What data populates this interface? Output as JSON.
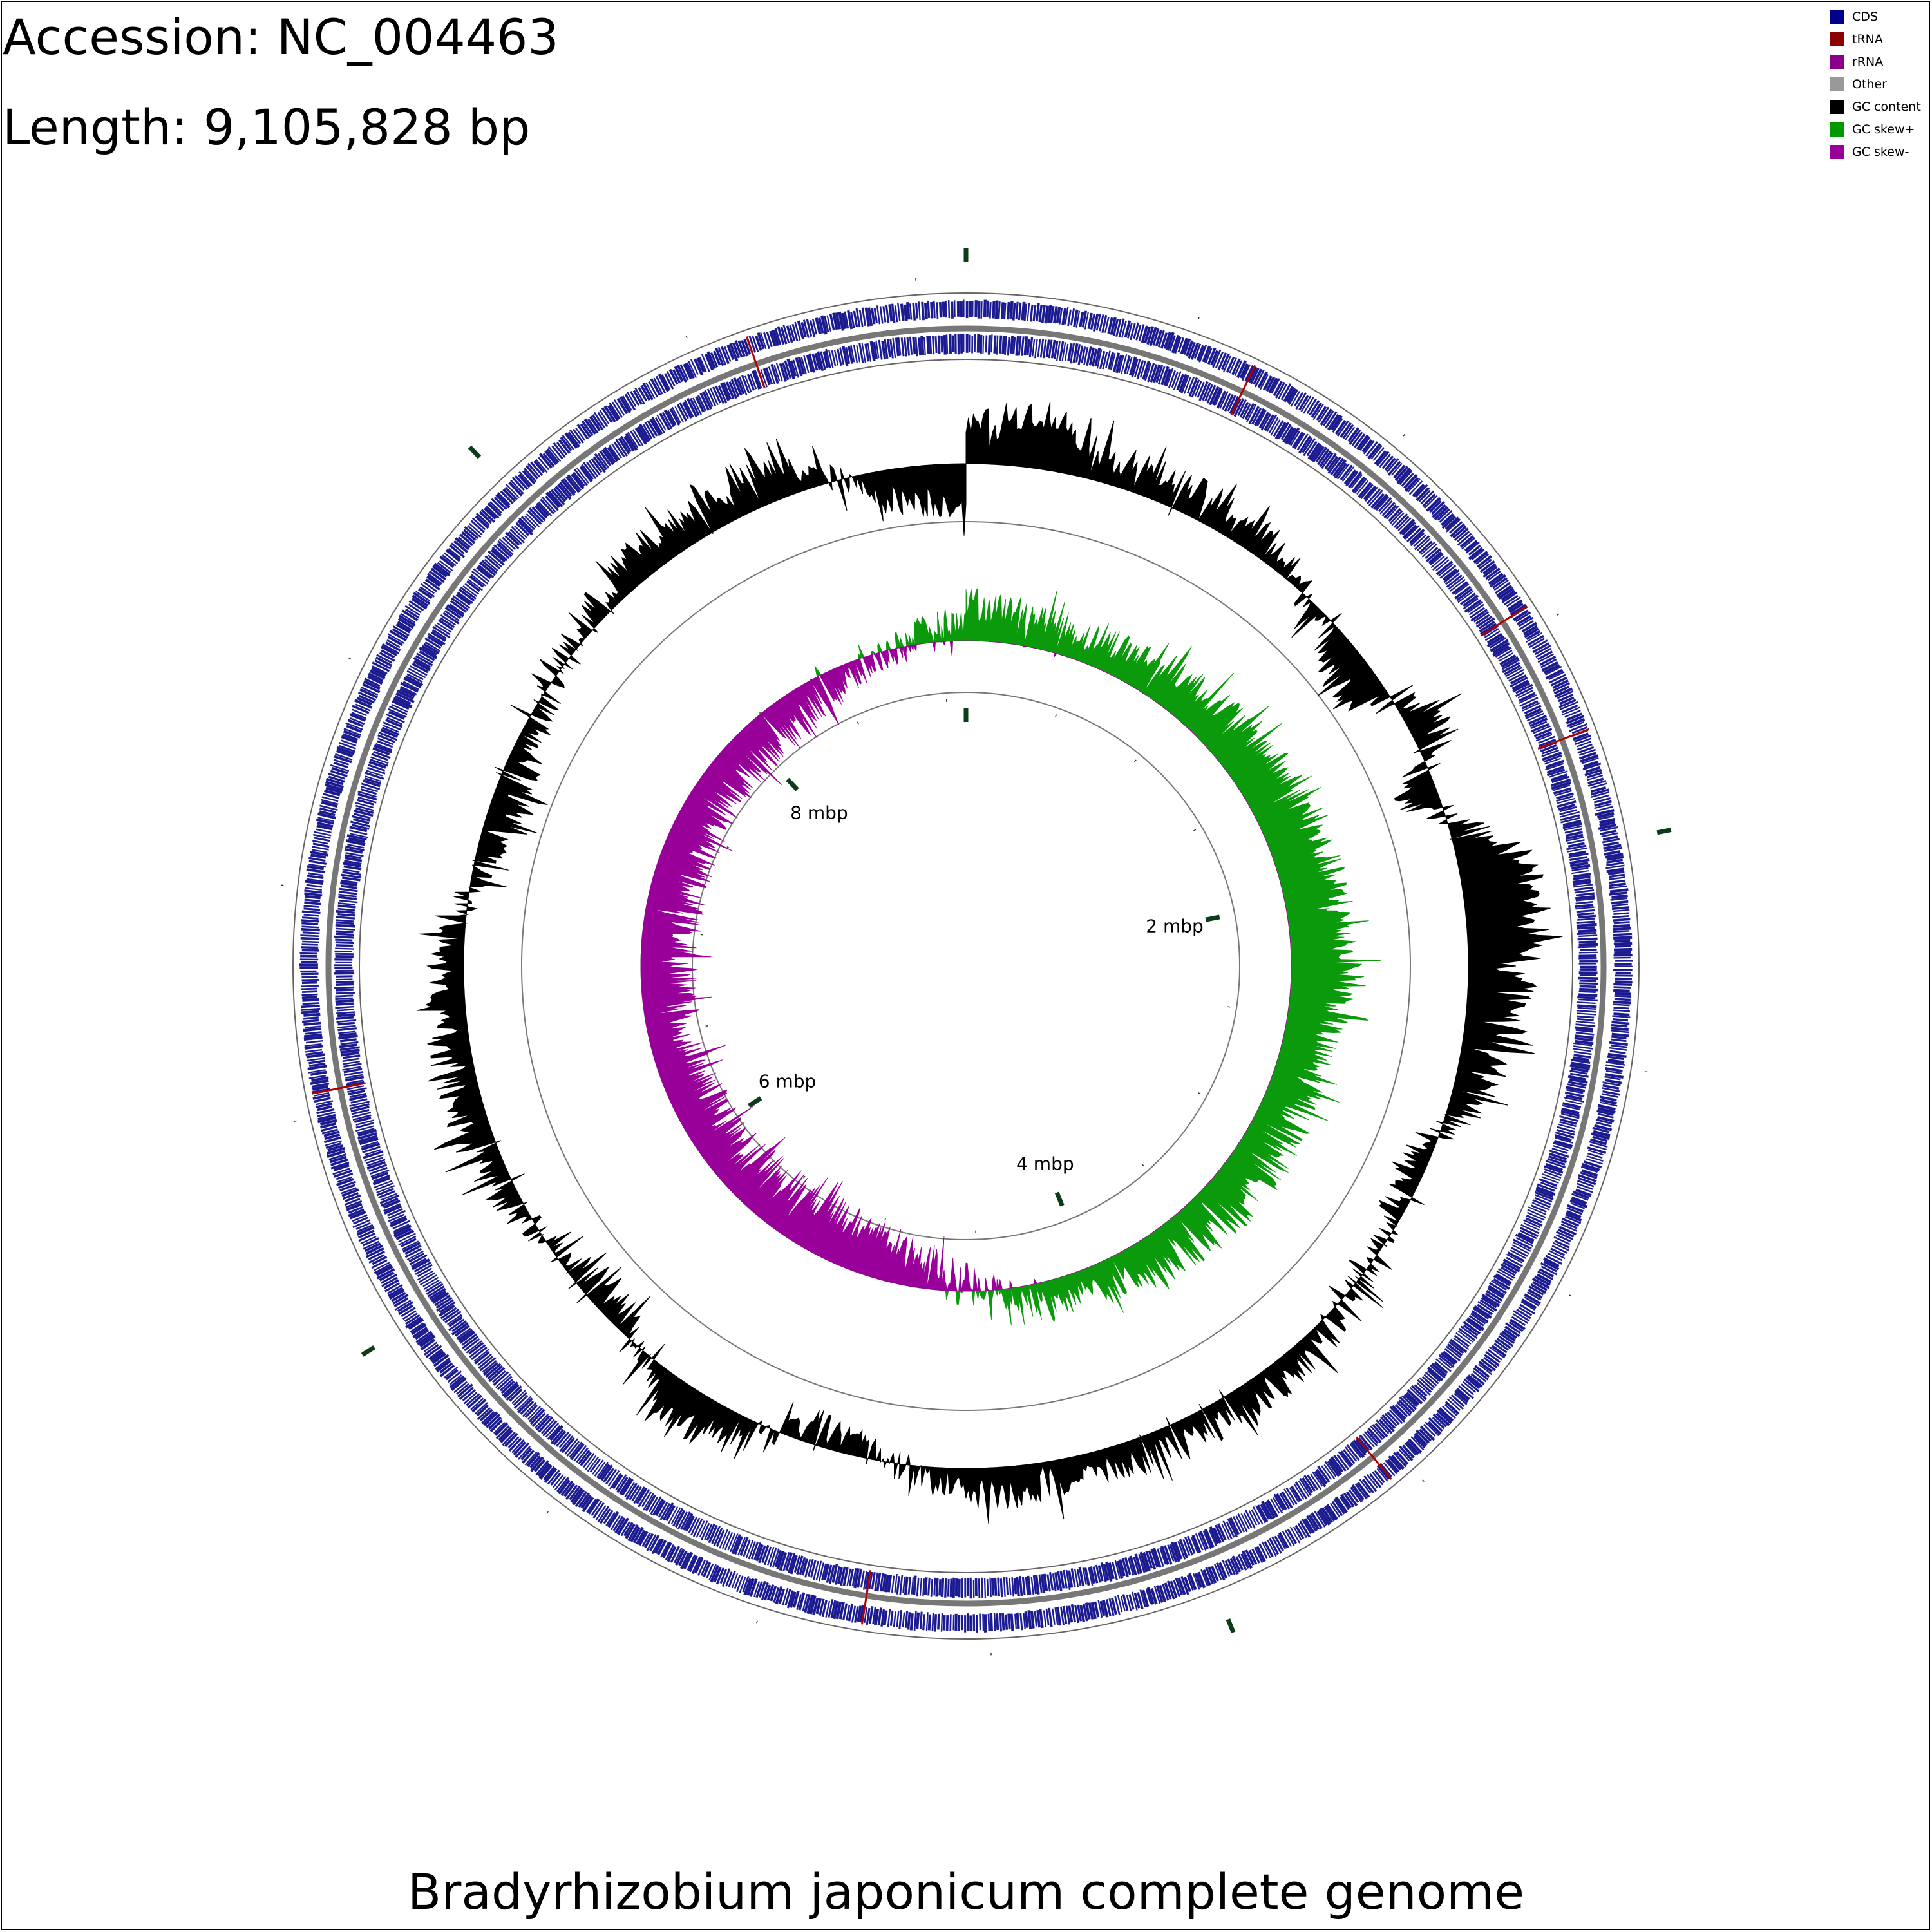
{
  "header": {
    "accession": "Accession: NC_004463",
    "length": "Length: 9,105,828 bp"
  },
  "caption": "Bradyrhizobium japonicum complete genome",
  "legend": [
    {
      "label": "CDS",
      "color": "#00008b"
    },
    {
      "label": "tRNA",
      "color": "#8b0000"
    },
    {
      "label": "rRNA",
      "color": "#8b008b"
    },
    {
      "label": "Other",
      "color": "#999999"
    },
    {
      "label": "GC content",
      "color": "#000000"
    },
    {
      "label": "GC skew+",
      "color": "#009900"
    },
    {
      "label": "GC skew-",
      "color": "#990099"
    }
  ],
  "chart_data": {
    "type": "circular-genome-map",
    "genome_length_bp": 9105828,
    "tick_labels": [
      {
        "position_mbp": 2,
        "label": "2 mbp"
      },
      {
        "position_mbp": 4,
        "label": "4 mbp"
      },
      {
        "position_mbp": 6,
        "label": "6 mbp"
      },
      {
        "position_mbp": 8,
        "label": "8 mbp"
      }
    ],
    "major_tick_interval_mbp": 2,
    "minor_tick_interval_mbp": 0.5,
    "tracks": [
      {
        "name": "CDS (forward strand)",
        "color": "#00008b"
      },
      {
        "name": "CDS (reverse strand)",
        "color": "#00008b"
      },
      {
        "name": "tRNA",
        "color": "#8b0000",
        "approx_positions_mbp": [
          0.65,
          1.45,
          1.75,
          3.55,
          4.78,
          6.55,
          8.62
        ]
      },
      {
        "name": "GC content",
        "color": "#000000"
      },
      {
        "name": "GC skew",
        "positive_color": "#009900",
        "negative_color": "#990099"
      }
    ],
    "gc_content_profile_mbp": [
      [
        0.0,
        0.45
      ],
      [
        0.2,
        0.75
      ],
      [
        0.4,
        0.35
      ],
      [
        0.9,
        0.3
      ],
      [
        1.4,
        -0.55
      ],
      [
        1.55,
        0.55
      ],
      [
        1.75,
        -0.5
      ],
      [
        2.0,
        0.9
      ],
      [
        2.25,
        0.8
      ],
      [
        2.5,
        0.55
      ],
      [
        2.65,
        0.4
      ],
      [
        2.85,
        -0.3
      ],
      [
        3.5,
        0.25
      ],
      [
        4.0,
        0.3
      ],
      [
        4.5,
        0.35
      ],
      [
        5.0,
        -0.3
      ],
      [
        5.3,
        0.5
      ],
      [
        5.45,
        0.35
      ],
      [
        5.7,
        -0.3
      ],
      [
        6.3,
        0.35
      ],
      [
        6.85,
        0.3
      ],
      [
        7.3,
        -0.4
      ],
      [
        8.1,
        0.35
      ],
      [
        8.6,
        0.4
      ],
      [
        8.85,
        -0.35
      ],
      [
        9.0,
        -0.5
      ]
    ],
    "gc_skew_profile_mbp": [
      [
        0.0,
        0.45
      ],
      [
        0.5,
        0.3
      ],
      [
        1.0,
        0.45
      ],
      [
        1.5,
        0.55
      ],
      [
        2.0,
        0.6
      ],
      [
        2.3,
        0.7
      ],
      [
        2.6,
        0.45
      ],
      [
        3.2,
        0.5
      ],
      [
        3.6,
        0.45
      ],
      [
        4.0,
        0.3
      ],
      [
        4.2,
        0.3
      ],
      [
        4.5,
        -0.1
      ],
      [
        5.0,
        -0.55
      ],
      [
        5.5,
        -0.55
      ],
      [
        6.0,
        -0.5
      ],
      [
        6.5,
        -0.45
      ],
      [
        7.0,
        -0.5
      ],
      [
        7.5,
        -0.45
      ],
      [
        8.0,
        -0.4
      ],
      [
        8.5,
        -0.25
      ],
      [
        9.0,
        0.2
      ]
    ]
  }
}
